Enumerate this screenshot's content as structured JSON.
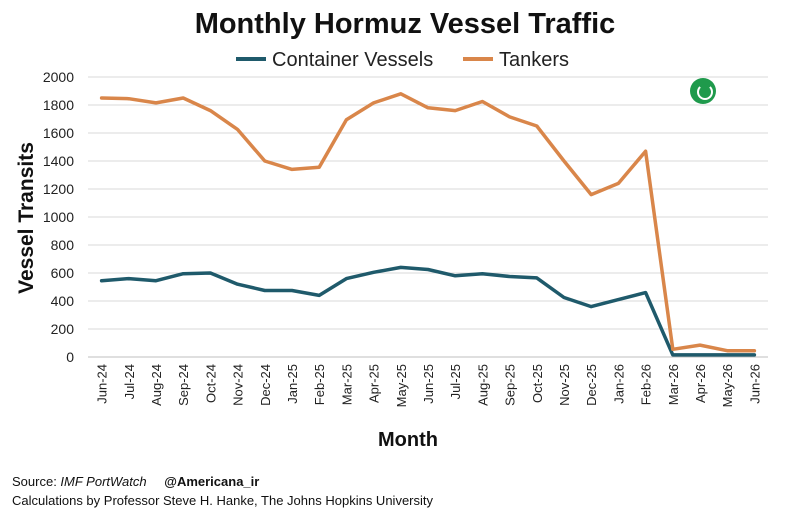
{
  "chart_data": {
    "type": "line",
    "title": "Monthly Hormuz Vessel Traffic",
    "xlabel": "Month",
    "ylabel": "Vessel Transits",
    "ylim": [
      0,
      2000
    ],
    "yticks": [
      0,
      200,
      400,
      600,
      800,
      1000,
      1200,
      1400,
      1600,
      1800,
      2000
    ],
    "grid": "horizontal",
    "legend_position": "top",
    "categories": [
      "Jun-24",
      "Jul-24",
      "Aug-24",
      "Sep-24",
      "Oct-24",
      "Nov-24",
      "Dec-24",
      "Jan-25",
      "Feb-25",
      "Mar-25",
      "Apr-25",
      "May-25",
      "Jun-25",
      "Jul-25",
      "Aug-25",
      "Sep-25",
      "Oct-25",
      "Nov-25",
      "Dec-25",
      "Jan-26",
      "Feb-26",
      "Mar-26",
      "Apr-26",
      "May-26",
      "Jun-26"
    ],
    "series": [
      {
        "name": "Container Vessels",
        "color": "#1f5a6b",
        "values": [
          545,
          560,
          545,
          595,
          600,
          520,
          475,
          475,
          440,
          560,
          605,
          640,
          625,
          580,
          595,
          575,
          565,
          425,
          360,
          410,
          460,
          15,
          15,
          15,
          15
        ]
      },
      {
        "name": "Tankers",
        "color": "#d9864a",
        "values": [
          1850,
          1845,
          1815,
          1850,
          1760,
          1625,
          1400,
          1340,
          1355,
          1695,
          1815,
          1880,
          1780,
          1760,
          1825,
          1715,
          1650,
          1400,
          1160,
          1240,
          1470,
          55,
          85,
          45,
          45
        ]
      }
    ]
  },
  "footer": {
    "source_prefix": "Source: ",
    "source_name": "IMF PortWatch",
    "handle": "@Americana_ir",
    "calculations": "Calculations by Professor Steve H. Hanke, The Johns Hopkins University"
  },
  "logo": {
    "icon": "americana-logo-icon",
    "color": "#1f9a4c"
  }
}
